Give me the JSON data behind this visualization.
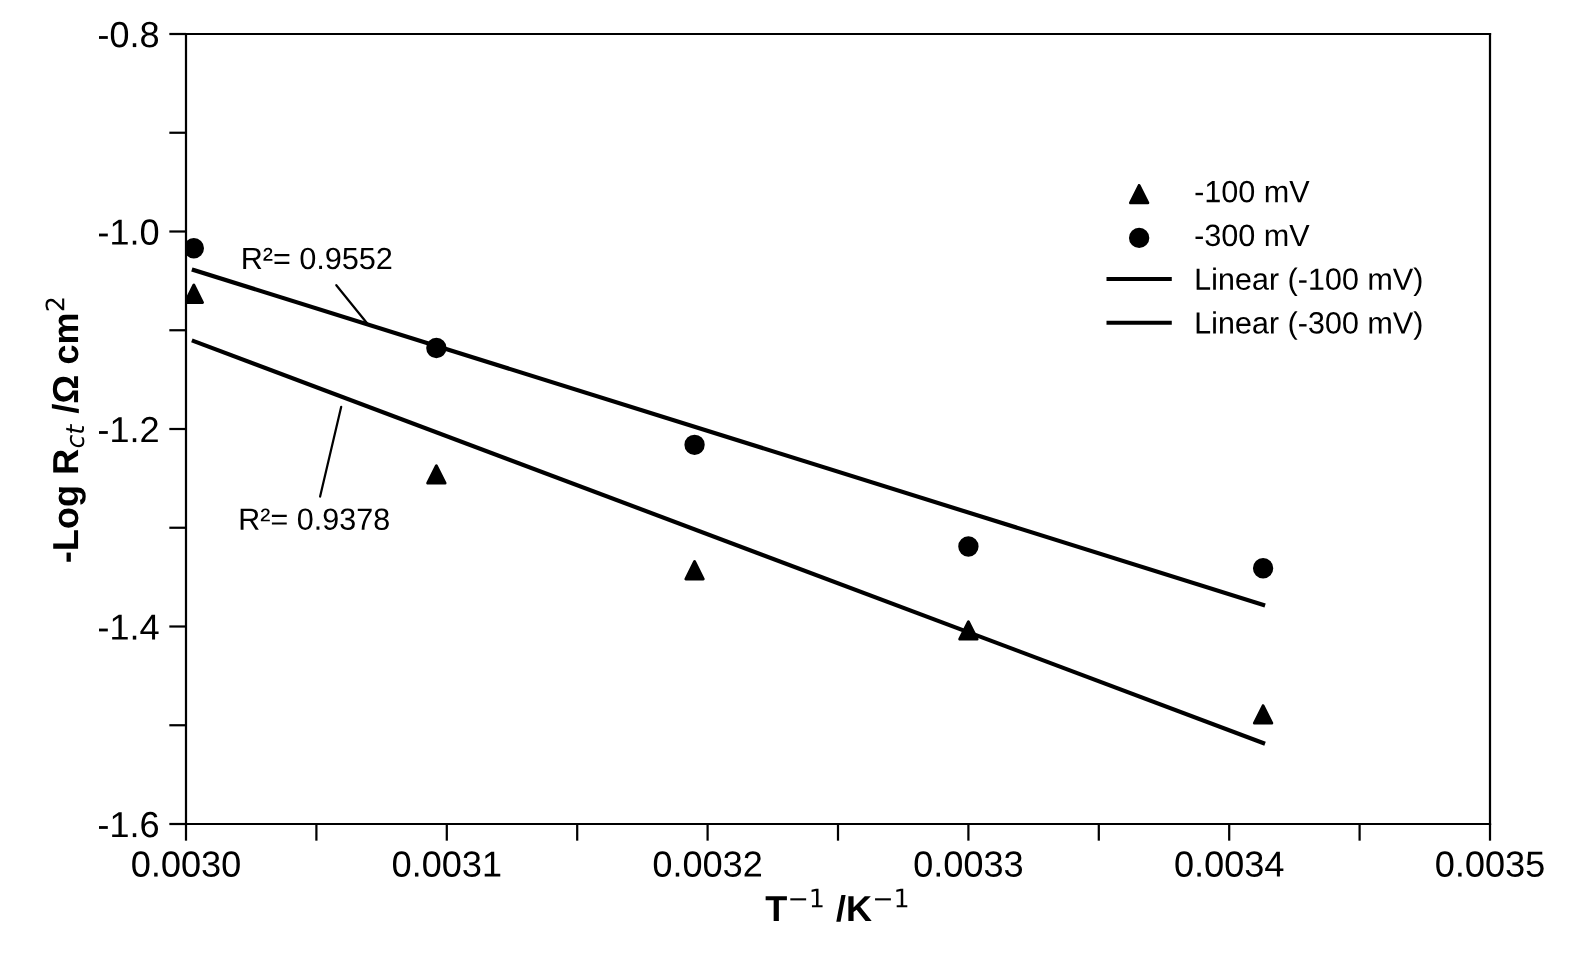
{
  "chart_data": {
    "type": "scatter",
    "xlabel": "T$^{−1}$ /K$^{−1}$",
    "ylabel": "-Log R$_{ct}$ /Ω cm$^{2}$",
    "xlim": [
      0.003,
      0.0035
    ],
    "ylim": [
      -1.6,
      -0.8
    ],
    "xticks": [
      {
        "value": 0.003,
        "label": "0.0030"
      },
      {
        "value": 0.00305,
        "label": null
      },
      {
        "value": 0.0031,
        "label": "0.0031"
      },
      {
        "value": 0.00315,
        "label": null
      },
      {
        "value": 0.0032,
        "label": "0.0032"
      },
      {
        "value": 0.00325,
        "label": null
      },
      {
        "value": 0.0033,
        "label": "0.0033"
      },
      {
        "value": 0.00335,
        "label": null
      },
      {
        "value": 0.0034,
        "label": "0.0034"
      },
      {
        "value": 0.00345,
        "label": null
      },
      {
        "value": 0.0035,
        "label": "0.0035"
      }
    ],
    "yticks": [
      -1.6,
      {
        "value": -1.5,
        "label": null
      },
      -1.4,
      {
        "value": -1.3,
        "label": null
      },
      -1.2,
      {
        "value": -1.1,
        "label": null
      },
      {
        "value": -1.0,
        "label": "-1.0"
      },
      {
        "value": -0.9,
        "label": null
      },
      -0.8
    ],
    "grid": false,
    "legend": "top right",
    "series": [
      {
        "name": "-100 mV",
        "marker": "triangle",
        "color": "#000000",
        "x": [
          0.003003,
          0.003096,
          0.003195,
          0.0033,
          0.003413
        ],
        "values": [
          -1.063,
          -1.246,
          -1.343,
          -1.404,
          -1.489
        ]
      },
      {
        "name": "-300 mV",
        "marker": "circle",
        "color": "#000000",
        "x": [
          0.003003,
          0.003096,
          0.003195,
          0.0033,
          0.003413
        ],
        "values": [
          -1.017,
          -1.118,
          -1.216,
          -1.319,
          -1.341
        ]
      },
      {
        "name": "Linear (-100 mV)",
        "type": "line",
        "line_style": "solid",
        "color": "#000000",
        "x": [
          0.003003,
          0.003413
        ],
        "values": [
          -1.111,
          -1.518
        ]
      },
      {
        "name": "Linear (-300 mV)",
        "type": "line",
        "line_style": "solid",
        "color": "#000000",
        "x": [
          0.003003,
          0.003413
        ],
        "values": [
          -1.039,
          -1.378
        ]
      }
    ],
    "annotations": [
      {
        "text": "R²= 0.9552",
        "x": 0.003071,
        "y": -1.098
      },
      {
        "text": "R²= 0.9378",
        "x": 0.00306,
        "y": -1.172
      }
    ]
  }
}
